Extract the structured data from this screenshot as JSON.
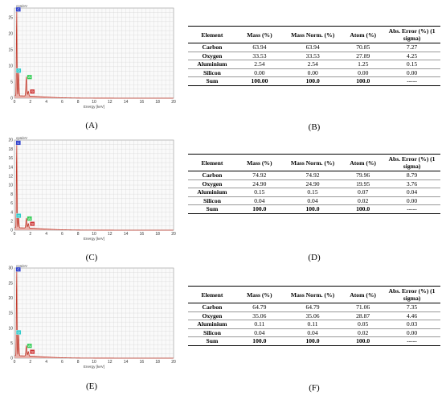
{
  "figure": {
    "panels": [
      {
        "spectrum_label": "(A)",
        "table_label": "(B)"
      },
      {
        "spectrum_label": "(C)",
        "table_label": "(D)"
      },
      {
        "spectrum_label": "(E)",
        "table_label": "(F)"
      }
    ]
  },
  "tables": {
    "headers": [
      "Element",
      "Mass (%)",
      "Mass Norm. (%)",
      "Atom (%)",
      "Abs. Error (%) (1 sigma)"
    ],
    "data": [
      {
        "rows": [
          [
            "Carbon",
            "63.94",
            "63.94",
            "70.85",
            "7.27"
          ],
          [
            "Oxygen",
            "33.53",
            "33.53",
            "27.89",
            "4.25"
          ],
          [
            "Aluminium",
            "2.54",
            "2.54",
            "1.25",
            "0.15"
          ],
          [
            "Silicon",
            "0.00",
            "0.00",
            "0.00",
            "0.00"
          ],
          [
            "Sum",
            "100.00",
            "100.0",
            "100.0",
            "-----"
          ]
        ]
      },
      {
        "rows": [
          [
            "Carbon",
            "74.92",
            "74.92",
            "79.96",
            "8.79"
          ],
          [
            "Oxygen",
            "24.90",
            "24.90",
            "19.95",
            "3.76"
          ],
          [
            "Aluminium",
            "0.15",
            "0.15",
            "0.07",
            "0.04"
          ],
          [
            "Silicon",
            "0.04",
            "0.04",
            "0.02",
            "0.00"
          ],
          [
            "Sum",
            "100.0",
            "100.0",
            "100.0",
            "-----"
          ]
        ]
      },
      {
        "rows": [
          [
            "Carbon",
            "64.79",
            "64.79",
            "71.06",
            "7.35"
          ],
          [
            "Oxygen",
            "35.06",
            "35.06",
            "28.87",
            "4.46"
          ],
          [
            "Aluminium",
            "0.11",
            "0.11",
            "0.05",
            "0.03"
          ],
          [
            "Silicon",
            "0.04",
            "0.04",
            "0.02",
            "0.00"
          ],
          [
            "Sum",
            "100.0",
            "100.0",
            "100.0",
            "-----"
          ]
        ]
      }
    ]
  },
  "chart_data": [
    {
      "type": "line",
      "ylabel": "cps/eV",
      "xlabel": "Energy [keV]",
      "xlim": [
        0,
        20
      ],
      "ylim": [
        0,
        28
      ],
      "x_ticks": [
        0,
        2,
        4,
        6,
        8,
        10,
        12,
        14,
        16,
        18,
        20
      ],
      "y_ticks": [
        0,
        5,
        10,
        15,
        20,
        25
      ],
      "peaks": [
        {
          "element": "C",
          "energy_keV": 0.28,
          "height_cps_per_eV": 27
        },
        {
          "element": "O",
          "energy_keV": 0.52,
          "height_cps_per_eV": 8
        },
        {
          "element": "Al",
          "energy_keV": 1.49,
          "height_cps_per_eV": 6
        },
        {
          "element": "Si",
          "energy_keV": 1.74,
          "height_cps_per_eV": 1.5
        }
      ],
      "colors": {
        "spectrum": "#c0392b",
        "grid": "#cfcfcf"
      }
    },
    {
      "type": "line",
      "ylabel": "cps/eV",
      "xlabel": "Energy [keV]",
      "xlim": [
        0,
        20
      ],
      "ylim": [
        0,
        20
      ],
      "x_ticks": [
        0,
        2,
        4,
        6,
        8,
        10,
        12,
        14,
        16,
        18,
        20
      ],
      "y_ticks": [
        0,
        2,
        4,
        6,
        8,
        10,
        12,
        14,
        16,
        18,
        20
      ],
      "peaks": [
        {
          "element": "C",
          "energy_keV": 0.28,
          "height_cps_per_eV": 19
        },
        {
          "element": "O",
          "energy_keV": 0.52,
          "height_cps_per_eV": 2.8
        },
        {
          "element": "Al",
          "energy_keV": 1.49,
          "height_cps_per_eV": 2.2
        },
        {
          "element": "Si",
          "energy_keV": 1.74,
          "height_cps_per_eV": 1
        }
      ],
      "colors": {
        "spectrum": "#c0392b",
        "grid": "#cfcfcf"
      }
    },
    {
      "type": "line",
      "ylabel": "cps/eV",
      "xlabel": "Energy [keV]",
      "xlim": [
        0,
        20
      ],
      "ylim": [
        0,
        30
      ],
      "x_ticks": [
        0,
        2,
        4,
        6,
        8,
        10,
        12,
        14,
        16,
        18,
        20
      ],
      "y_ticks": [
        0,
        5,
        10,
        15,
        20,
        25,
        30
      ],
      "peaks": [
        {
          "element": "C",
          "energy_keV": 0.28,
          "height_cps_per_eV": 29
        },
        {
          "element": "O",
          "energy_keV": 0.52,
          "height_cps_per_eV": 8
        },
        {
          "element": "Al",
          "energy_keV": 1.49,
          "height_cps_per_eV": 3.5
        },
        {
          "element": "Si",
          "energy_keV": 1.74,
          "height_cps_per_eV": 1.5
        }
      ],
      "colors": {
        "spectrum": "#c0392b",
        "grid": "#cfcfcf"
      }
    }
  ]
}
